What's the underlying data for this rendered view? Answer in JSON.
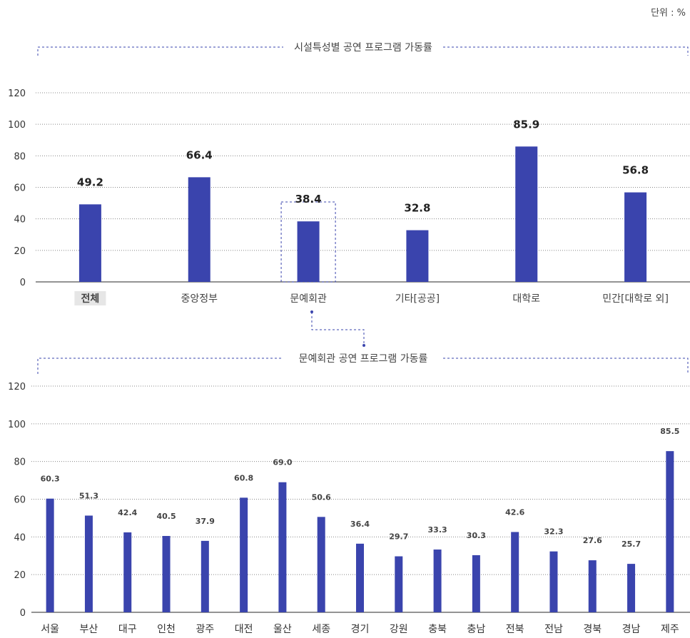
{
  "unit": "단위 : %",
  "accent_color": "#3a44ad",
  "chart_data": [
    {
      "type": "bar",
      "title": "시설특성별 공연 프로그램 가동률",
      "categories": [
        "전체",
        "중앙정부",
        "문예회관",
        "기타[공공]",
        "대학로",
        "민간[대학로 외]"
      ],
      "values": [
        49.2,
        66.4,
        38.4,
        32.8,
        85.9,
        56.8
      ],
      "yticks": [
        "0",
        "20",
        "40",
        "60",
        "80",
        "100",
        "120"
      ],
      "ylim": [
        0,
        120
      ],
      "highlighted_category": "전체",
      "boxed_category": "문예회관"
    },
    {
      "type": "bar",
      "title": "문예회관 공연 프로그램 가동률",
      "categories": [
        "서울",
        "부산",
        "대구",
        "인천",
        "광주",
        "대전",
        "울산",
        "세종",
        "경기",
        "강원",
        "충북",
        "충남",
        "전북",
        "전남",
        "경북",
        "경남",
        "제주"
      ],
      "values": [
        60.3,
        51.3,
        42.4,
        40.5,
        37.9,
        60.8,
        69.0,
        50.6,
        36.4,
        29.7,
        33.3,
        30.3,
        42.6,
        32.3,
        27.6,
        25.7,
        85.5
      ],
      "value_labels": [
        "60.3",
        "51.3",
        "42.4",
        "40.5",
        "37.9",
        "60.8",
        "69.0",
        "50.6",
        "36.4",
        "29.7",
        "33.3",
        "30.3",
        "42.6",
        "32.3",
        "27.6",
        "25.7",
        "85.5"
      ],
      "yticks": [
        "0",
        "20",
        "40",
        "60",
        "80",
        "100",
        "120"
      ],
      "ylim": [
        0,
        120
      ]
    }
  ]
}
